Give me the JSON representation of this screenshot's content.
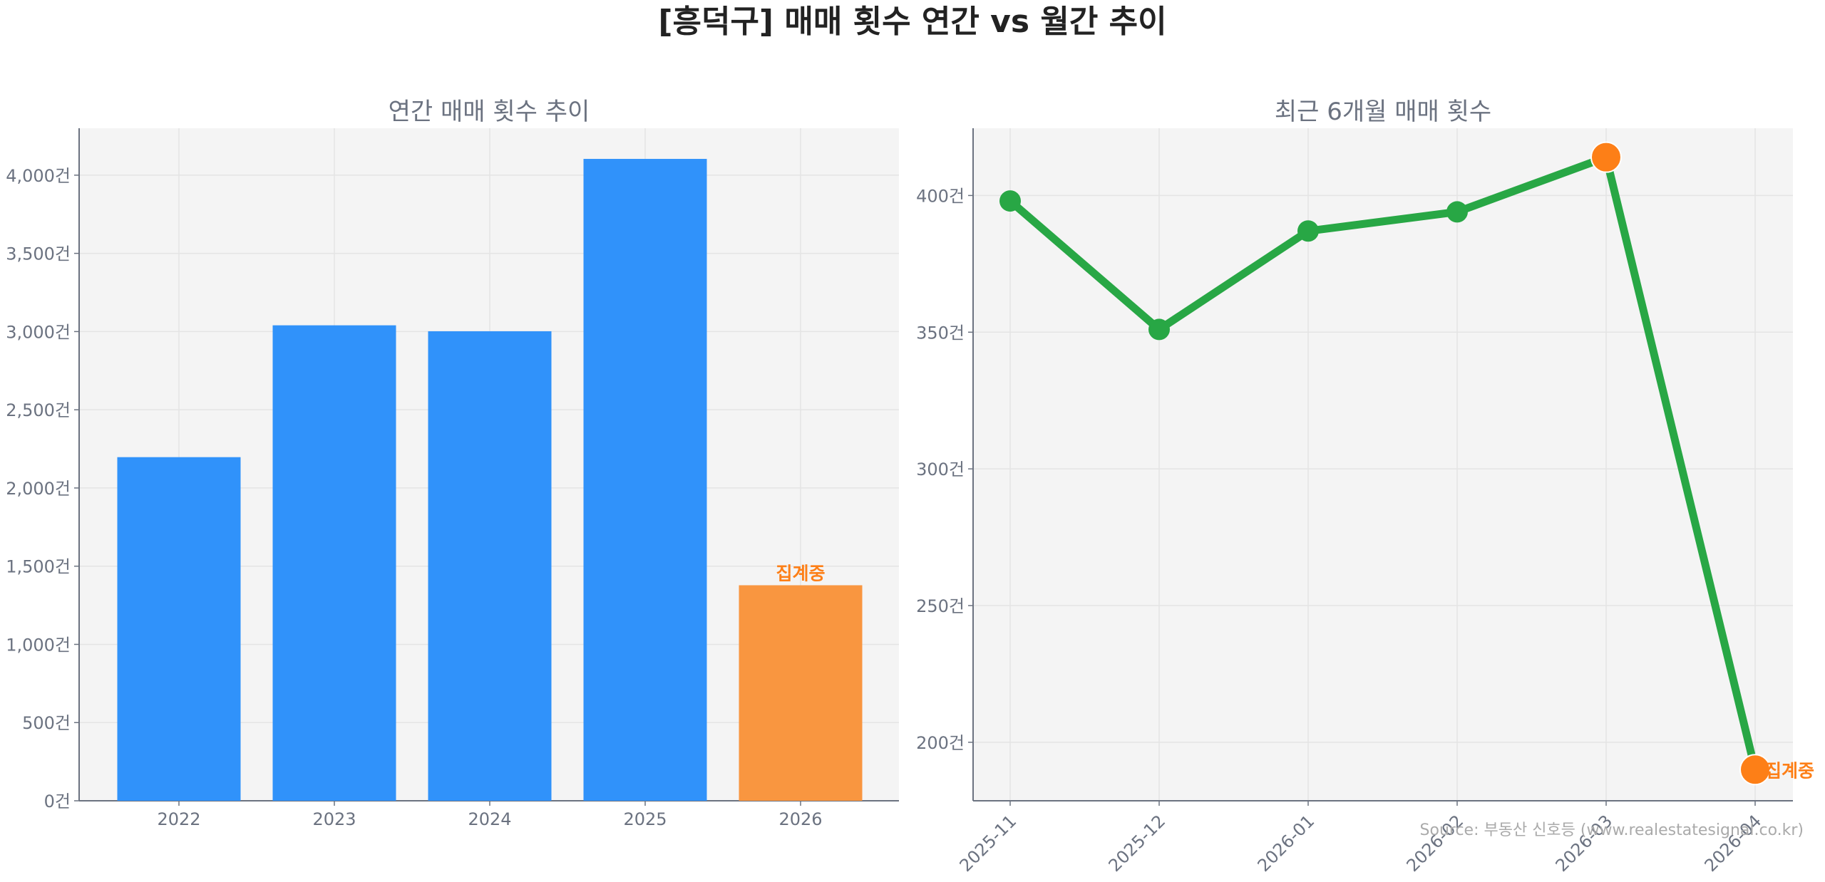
{
  "title": "[흥덕구] 매매 횟수 연간 vs 월간 추이",
  "source": "Source: 부동산 신호등 (www.realestatesignal.co.kr)",
  "colors": {
    "bar": "#3092fa",
    "bar_partial": "#f99640",
    "line": "#28a745",
    "marker_highlight": "#fd7f17",
    "annotation": "#fd7f17"
  },
  "chart_data": [
    {
      "type": "bar",
      "title": "연간 매매 횟수 추이",
      "categories": [
        "2022",
        "2023",
        "2024",
        "2025",
        "2026"
      ],
      "values": [
        2197,
        3040,
        3002,
        4104,
        1378
      ],
      "partial": [
        false,
        false,
        false,
        false,
        true
      ],
      "annotation": "집계중",
      "ylim": [
        0,
        4300
      ],
      "yticks": [
        0,
        500,
        1000,
        1500,
        2000,
        2500,
        3000,
        3500,
        4000
      ],
      "ytick_labels": [
        "0건",
        "500건",
        "1,000건",
        "1,500건",
        "2,000건",
        "2,500건",
        "3,000건",
        "3,500건",
        "4,000건"
      ],
      "grid": true
    },
    {
      "type": "line",
      "title": "최근 6개월 매매 횟수",
      "categories": [
        "2025-11",
        "2025-12",
        "2026-01",
        "2026-02",
        "2026-03",
        "2026-04"
      ],
      "values": [
        398,
        351,
        387,
        394,
        414,
        190
      ],
      "highlight": [
        false,
        false,
        false,
        false,
        true,
        true
      ],
      "annotation": "집계중",
      "ylim": [
        178.6,
        424.6
      ],
      "yticks": [
        200,
        250,
        300,
        350,
        400
      ],
      "ytick_labels": [
        "200건",
        "250건",
        "300건",
        "350건",
        "400건"
      ],
      "grid": true
    }
  ]
}
